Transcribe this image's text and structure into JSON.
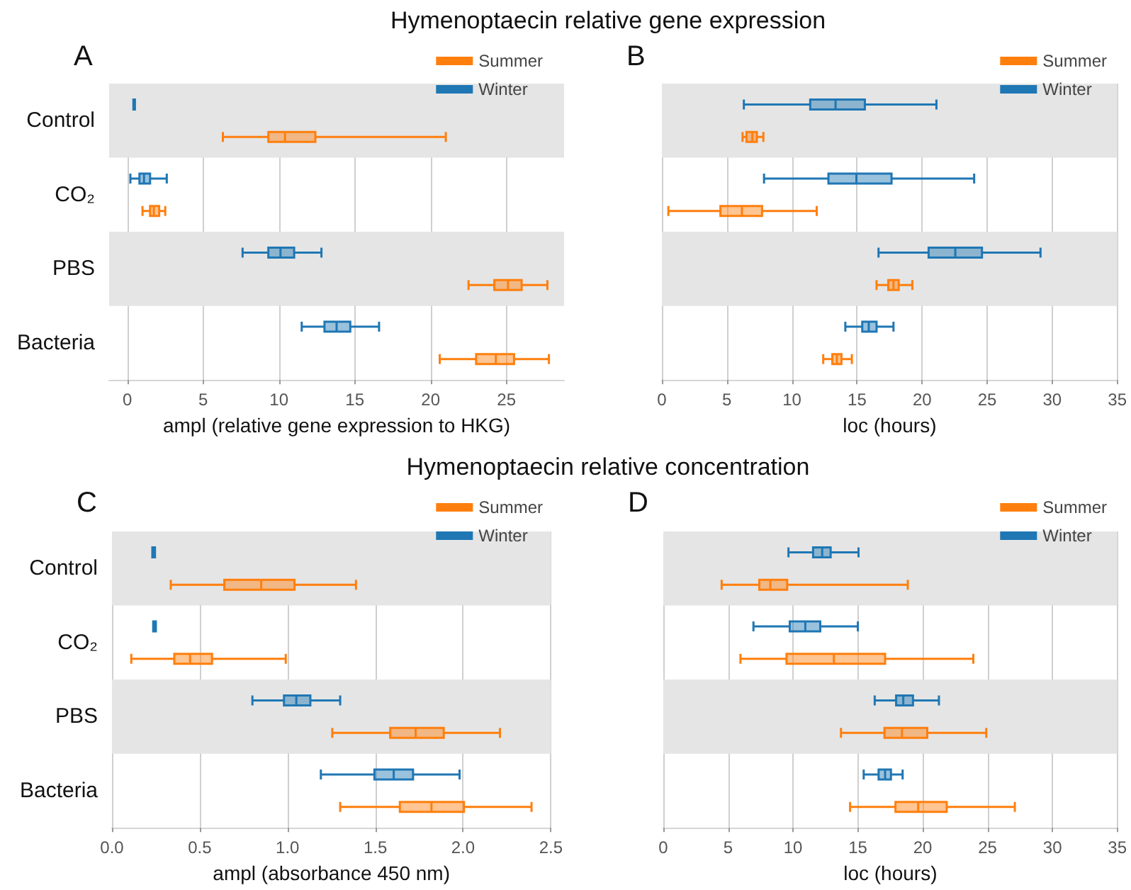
{
  "chart_data": [
    {
      "type": "box",
      "orientation": "horizontal",
      "title": "Hymenoptaecin relative gene expression",
      "xlabel": "ampl (relative gene expression to HKG)",
      "annotations": [
        "A"
      ],
      "categories": [
        "Control",
        "CO₂",
        "PBS",
        "Bacteria"
      ],
      "xlim": [
        -1.2,
        28.8
      ],
      "xticks": [
        0,
        5,
        10,
        15,
        20,
        25
      ],
      "grid": "x",
      "legend": "top right",
      "bands": [
        {
          "axis": "y",
          "from": "Control",
          "to": "Control",
          "color": "#e5e5e5"
        },
        {
          "axis": "y",
          "from": "PBS",
          "to": "PBS",
          "color": "#e5e5e5"
        }
      ],
      "series": [
        {
          "name": "Winter",
          "color": "#1f77b4",
          "boxes": [
            {
              "low": 0.4,
              "q1": 0.4,
              "median": 0.45,
              "q3": 0.5,
              "high": 0.5
            },
            {
              "low": 0.2,
              "q1": 0.8,
              "median": 1.1,
              "q3": 1.5,
              "high": 2.6
            },
            {
              "low": 7.6,
              "q1": 9.3,
              "median": 10.1,
              "q3": 11.0,
              "high": 12.8
            },
            {
              "low": 11.5,
              "q1": 13.0,
              "median": 13.8,
              "q3": 14.7,
              "high": 16.6
            }
          ]
        },
        {
          "name": "Summer",
          "color": "#ff7f0e",
          "boxes": [
            {
              "low": 6.3,
              "q1": 9.3,
              "median": 10.4,
              "q3": 12.4,
              "high": 21.0
            },
            {
              "low": 1.0,
              "q1": 1.5,
              "median": 1.75,
              "q3": 2.1,
              "high": 2.5
            },
            {
              "low": 22.5,
              "q1": 24.2,
              "median": 25.1,
              "q3": 26.0,
              "high": 27.7
            },
            {
              "low": 20.6,
              "q1": 23.0,
              "median": 24.3,
              "q3": 25.5,
              "high": 27.8
            }
          ]
        }
      ]
    },
    {
      "type": "box",
      "orientation": "horizontal",
      "xlabel": "loc (hours)",
      "annotations": [
        "B"
      ],
      "categories": [
        "Control",
        "CO₂",
        "PBS",
        "Bacteria"
      ],
      "tick_labels": "x",
      "xlim": [
        0,
        35
      ],
      "xticks": [
        0,
        5,
        10,
        15,
        20,
        25,
        30,
        35
      ],
      "grid": "x",
      "legend": "top right",
      "bands": [
        {
          "axis": "y",
          "from": "Control",
          "to": "Control",
          "color": "#e5e5e5"
        },
        {
          "axis": "y",
          "from": "PBS",
          "to": "PBS",
          "color": "#e5e5e5"
        }
      ],
      "series": [
        {
          "name": "Winter",
          "color": "#1f77b4",
          "boxes": [
            {
              "low": 6.3,
              "q1": 11.4,
              "median": 13.35,
              "q3": 15.6,
              "high": 21.1
            },
            {
              "low": 7.85,
              "q1": 12.8,
              "median": 14.95,
              "q3": 17.65,
              "high": 24.0
            },
            {
              "low": 16.65,
              "q1": 20.5,
              "median": 22.55,
              "q3": 24.6,
              "high": 29.1
            },
            {
              "low": 14.1,
              "q1": 15.4,
              "median": 15.9,
              "q3": 16.5,
              "high": 17.8
            }
          ]
        },
        {
          "name": "Summer",
          "color": "#ff7f0e",
          "boxes": [
            {
              "low": 6.2,
              "q1": 6.5,
              "median": 6.95,
              "q3": 7.3,
              "high": 7.8
            },
            {
              "low": 0.5,
              "q1": 4.5,
              "median": 6.15,
              "q3": 7.7,
              "high": 11.9
            },
            {
              "low": 16.5,
              "q1": 17.4,
              "median": 17.8,
              "q3": 18.2,
              "high": 19.25
            },
            {
              "low": 12.4,
              "q1": 13.1,
              "median": 13.45,
              "q3": 13.8,
              "high": 14.6
            }
          ]
        }
      ]
    },
    {
      "type": "box",
      "orientation": "horizontal",
      "title": "Hymenoptaecin relative concentration",
      "xlabel": "ampl (absorbance 450 nm)",
      "annotations": [
        "C"
      ],
      "categories": [
        "Control",
        "CO₂",
        "PBS",
        "Bacteria"
      ],
      "xlim": [
        0,
        2.5
      ],
      "xticks": [
        {
          "value": 0,
          "label": "0.0"
        },
        {
          "value": 0.5,
          "label": "0.5"
        },
        {
          "value": 1,
          "label": "1.0"
        },
        {
          "value": 1.5,
          "label": "1.5"
        },
        {
          "value": 2,
          "label": "2.0"
        },
        {
          "value": 2.5,
          "label": "2.5"
        }
      ],
      "grid": "x",
      "legend": "top right",
      "bands": [
        {
          "axis": "y",
          "from": "Control",
          "to": "Control",
          "color": "#e5e5e5"
        },
        {
          "axis": "y",
          "from": "PBS",
          "to": "PBS",
          "color": "#e5e5e5"
        }
      ],
      "series": [
        {
          "name": "Winter",
          "color": "#1f77b4",
          "boxes": [
            {
              "low": 0.23,
              "q1": 0.23,
              "median": 0.237,
              "q3": 0.245,
              "high": 0.245
            },
            {
              "low": 0.235,
              "q1": 0.235,
              "median": 0.242,
              "q3": 0.25,
              "high": 0.25
            },
            {
              "low": 0.8,
              "q1": 0.98,
              "median": 1.05,
              "q3": 1.13,
              "high": 1.3
            },
            {
              "low": 1.19,
              "q1": 1.495,
              "median": 1.605,
              "q3": 1.715,
              "high": 1.98
            }
          ]
        },
        {
          "name": "Summer",
          "color": "#ff7f0e",
          "boxes": [
            {
              "low": 0.335,
              "q1": 0.64,
              "median": 0.85,
              "q3": 1.04,
              "high": 1.39
            },
            {
              "low": 0.11,
              "q1": 0.355,
              "median": 0.445,
              "q3": 0.57,
              "high": 0.99
            },
            {
              "low": 1.255,
              "q1": 1.585,
              "median": 1.73,
              "q3": 1.89,
              "high": 2.21
            },
            {
              "low": 1.3,
              "q1": 1.64,
              "median": 1.82,
              "q3": 2.005,
              "high": 2.39
            }
          ]
        }
      ]
    },
    {
      "type": "box",
      "orientation": "horizontal",
      "xlabel": "loc (hours)",
      "annotations": [
        "D"
      ],
      "categories": [
        "Control",
        "CO₂",
        "PBS",
        "Bacteria"
      ],
      "tick_labels": "x",
      "xlim": [
        0,
        35
      ],
      "xticks": [
        0,
        5,
        10,
        15,
        20,
        25,
        30,
        35
      ],
      "grid": "x",
      "legend": "top right",
      "bands": [
        {
          "axis": "y",
          "from": "Control",
          "to": "Control",
          "color": "#e5e5e5"
        },
        {
          "axis": "y",
          "from": "PBS",
          "to": "PBS",
          "color": "#e5e5e5"
        }
      ],
      "series": [
        {
          "name": "Winter",
          "color": "#1f77b4",
          "boxes": [
            {
              "low": 9.65,
              "q1": 11.55,
              "median": 12.25,
              "q3": 12.9,
              "high": 15.05
            },
            {
              "low": 6.95,
              "q1": 9.75,
              "median": 10.95,
              "q3": 12.1,
              "high": 15.0
            },
            {
              "low": 16.3,
              "q1": 17.95,
              "median": 18.5,
              "q3": 19.25,
              "high": 21.25
            },
            {
              "low": 15.45,
              "q1": 16.6,
              "median": 17.1,
              "q3": 17.55,
              "high": 18.45
            }
          ]
        },
        {
          "name": "Summer",
          "color": "#ff7f0e",
          "boxes": [
            {
              "low": 4.5,
              "q1": 7.4,
              "median": 8.25,
              "q3": 9.55,
              "high": 18.85
            },
            {
              "low": 5.95,
              "q1": 9.5,
              "median": 13.15,
              "q3": 17.1,
              "high": 23.9
            },
            {
              "low": 13.7,
              "q1": 17.05,
              "median": 18.4,
              "q3": 20.35,
              "high": 24.9
            },
            {
              "low": 14.4,
              "q1": 17.9,
              "median": 19.65,
              "q3": 21.85,
              "high": 27.1
            }
          ]
        }
      ]
    }
  ]
}
